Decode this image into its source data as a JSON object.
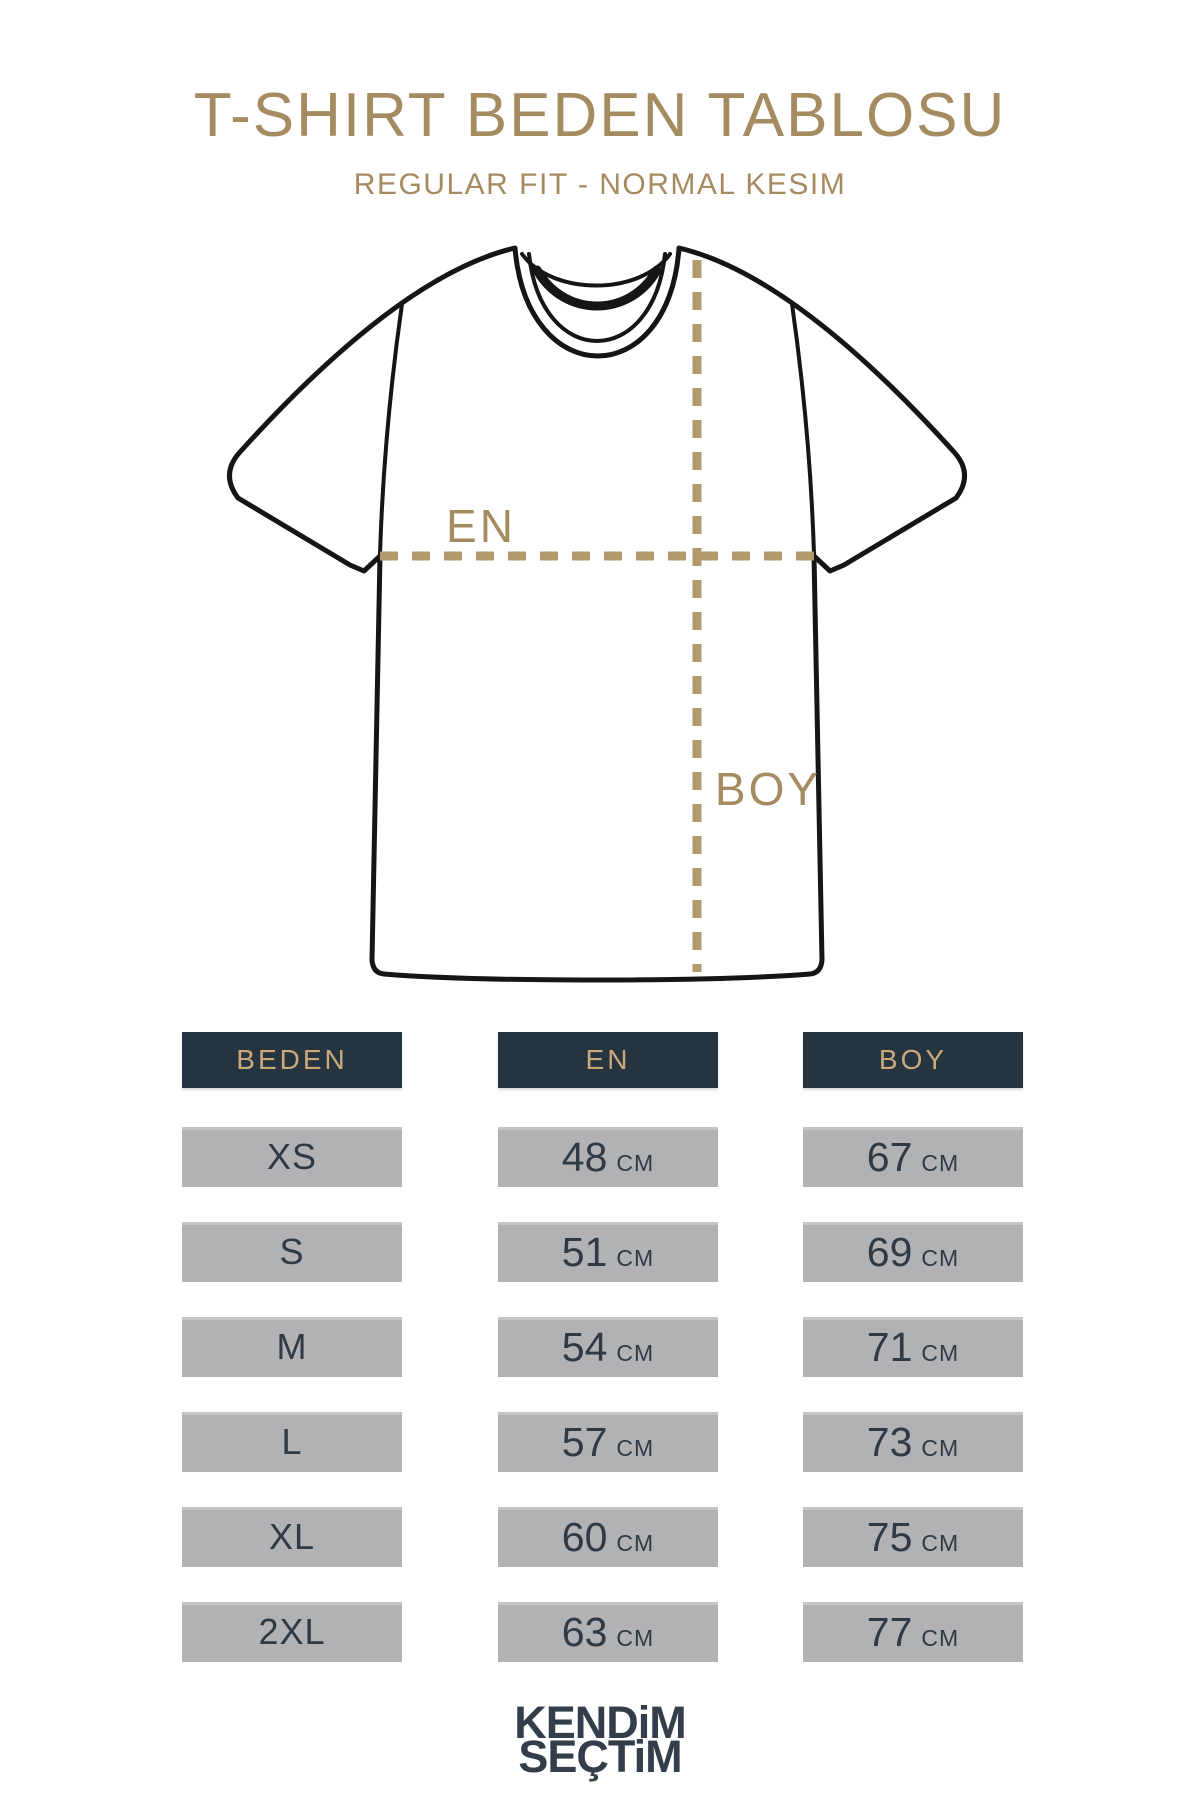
{
  "page": {
    "title": "T-SHIRT BEDEN TABLOSU",
    "subtitle": "REGULAR FIT - NORMAL KESIM"
  },
  "diagram": {
    "width_label": "EN",
    "length_label": "BOY"
  },
  "table": {
    "headers": [
      "BEDEN",
      "EN",
      "BOY"
    ],
    "unit": "CM",
    "rows": [
      {
        "size": "XS",
        "en": "48",
        "boy": "67"
      },
      {
        "size": "S",
        "en": "51",
        "boy": "69"
      },
      {
        "size": "M",
        "en": "54",
        "boy": "71"
      },
      {
        "size": "L",
        "en": "57",
        "boy": "73"
      },
      {
        "size": "XL",
        "en": "60",
        "boy": "75"
      },
      {
        "size": "2XL",
        "en": "63",
        "boy": "77"
      }
    ]
  },
  "footer": {
    "logo_line1": "KENDiM",
    "logo_line2": "SEÇTiM"
  },
  "colors": {
    "tan": "#a58b60",
    "dash_tan": "#b29a6e",
    "header_bg": "#263440",
    "header_text": "#c9a87a",
    "cell_bg": "#b2b2b4",
    "cell_text": "#2f3a44",
    "logo": "#333e4a",
    "outline": "#151515"
  }
}
